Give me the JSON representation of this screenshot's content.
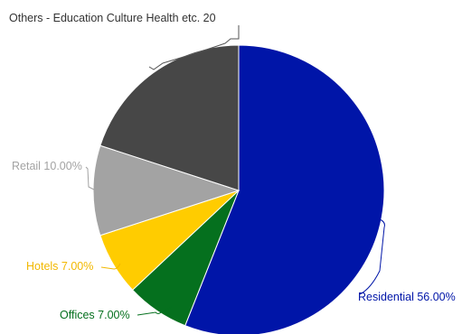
{
  "chart_data": {
    "type": "pie",
    "title": "",
    "slices": [
      {
        "label": "Residential",
        "value": 56.0,
        "display": "Residential 56.00%",
        "color": "#0015a8",
        "label_color": "#0015a8"
      },
      {
        "label": "Offices",
        "value": 7.0,
        "display": "Offices 7.00%",
        "color": "#05701e",
        "label_color": "#05701e"
      },
      {
        "label": "Hotels",
        "value": 7.0,
        "display": "Hotels 7.00%",
        "color": "#ffcc00",
        "label_color": "#f2b800"
      },
      {
        "label": "Retail",
        "value": 10.0,
        "display": "Retail 10.00%",
        "color": "#a3a3a3",
        "label_color": "#a3a3a3"
      },
      {
        "label": "Others - Education Culture Health etc.",
        "value": 20.0,
        "display": "Others - Education Culture Health etc. 20",
        "color": "#474747",
        "label_color": "#333333"
      }
    ],
    "start_angle_deg": 0,
    "direction": "clockwise",
    "legend": "none"
  }
}
